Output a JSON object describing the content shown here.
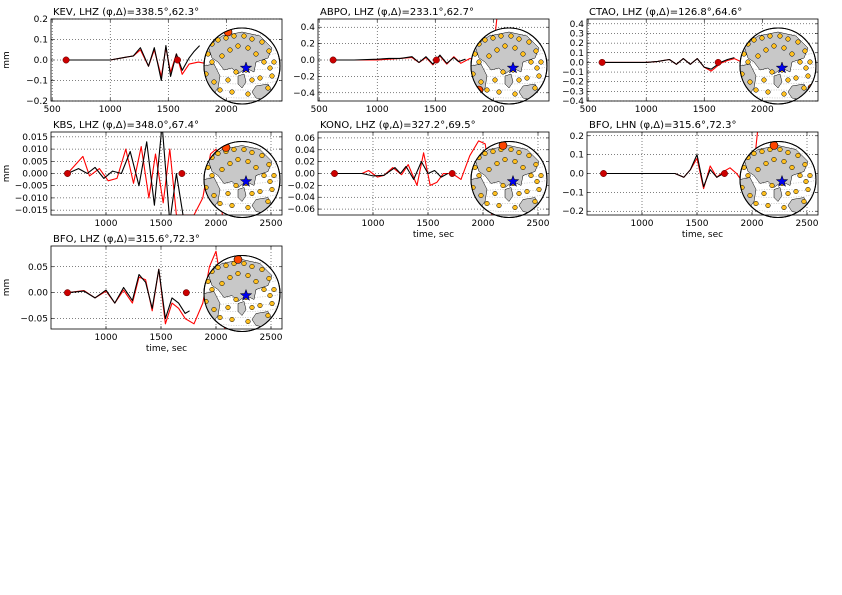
{
  "chart_data": [
    {
      "type": "line",
      "title": "KEV, LHZ (φ,Δ)=338.5°,62.3°",
      "ylabel": "mm",
      "xlabel": "",
      "xlim": [
        490,
        2480
      ],
      "ylim": [
        -0.2,
        0.2
      ],
      "xticks": [
        500,
        1000,
        1500,
        2000
      ],
      "yticks": [
        -0.2,
        -0.1,
        0.0,
        0.1,
        0.2
      ],
      "ytick_labels": [
        "−0.2",
        "−0.1",
        "0.0",
        "0.1",
        "0.2"
      ],
      "grid": true,
      "series": [
        {
          "color": "#000000",
          "x": [
            620,
            800,
            1000,
            1100,
            1200,
            1260,
            1330,
            1380,
            1440,
            1480,
            1520,
            1570,
            1620,
            1680,
            1720,
            1770
          ],
          "y": [
            0.0,
            0.0,
            0.0,
            0.01,
            0.02,
            0.06,
            -0.03,
            0.06,
            -0.1,
            0.07,
            -0.08,
            0.03,
            -0.05,
            0.01,
            0.04,
            0.07
          ]
        },
        {
          "color": "#ff0000",
          "x": [
            620,
            800,
            1000,
            1100,
            1200,
            1260,
            1330,
            1380,
            1440,
            1480,
            1520,
            1570,
            1620,
            1680,
            1760,
            1850,
            1920,
            1970,
            2010,
            2030
          ],
          "y": [
            0.0,
            0.0,
            0.0,
            0.01,
            0.02,
            0.05,
            -0.03,
            0.05,
            -0.08,
            0.06,
            -0.06,
            0.03,
            -0.07,
            -0.02,
            -0.01,
            -0.02,
            -0.05,
            -0.03,
            0.06,
            -0.2
          ]
        }
      ],
      "markers": [
        {
          "x": 620,
          "y": 0.0
        },
        {
          "x": 1580,
          "y": 0.0
        }
      ]
    },
    {
      "type": "line",
      "title": "ABPO, LHZ (φ,Δ)=233.1°,62.7°",
      "ylabel": "",
      "xlabel": "",
      "xlim": [
        490,
        2480
      ],
      "ylim": [
        -0.5,
        0.5
      ],
      "xticks": [
        500,
        1000,
        1500,
        2000
      ],
      "yticks": [
        -0.4,
        -0.2,
        0.0,
        0.2,
        0.4
      ],
      "ytick_labels": [
        "−0.4",
        "−0.2",
        "0.0",
        "0.2",
        "0.4"
      ],
      "grid": true,
      "series": [
        {
          "color": "#000000",
          "x": [
            620,
            800,
            1000,
            1100,
            1200,
            1300,
            1360,
            1420,
            1480,
            1540,
            1600,
            1660,
            1700,
            1760
          ],
          "y": [
            0.0,
            0.0,
            0.01,
            0.02,
            0.02,
            0.04,
            -0.03,
            0.04,
            -0.05,
            0.06,
            -0.04,
            0.03,
            -0.02,
            0.01
          ]
        },
        {
          "color": "#ff0000",
          "x": [
            620,
            800,
            1000,
            1100,
            1200,
            1300,
            1360,
            1420,
            1480,
            1540,
            1600,
            1660,
            1720,
            1800,
            1900,
            1960,
            2000,
            2030
          ],
          "y": [
            0.0,
            0.0,
            0.0,
            0.01,
            0.02,
            0.03,
            -0.03,
            0.03,
            -0.06,
            0.05,
            -0.05,
            0.04,
            -0.04,
            0.02,
            -0.05,
            -0.09,
            0.1,
            0.5
          ]
        }
      ],
      "markers": [
        {
          "x": 620,
          "y": 0.0
        },
        {
          "x": 1510,
          "y": 0.0
        }
      ]
    },
    {
      "type": "line",
      "title": "CTAO, LHZ (φ,Δ)=126.8°,64.6°",
      "ylabel": "",
      "xlabel": "",
      "xlim": [
        490,
        2480
      ],
      "ylim": [
        -0.4,
        0.45
      ],
      "xticks": [
        500,
        1000,
        1500,
        2000
      ],
      "yticks": [
        -0.4,
        -0.3,
        -0.2,
        -0.1,
        0.0,
        0.1,
        0.2,
        0.3,
        0.4
      ],
      "ytick_labels": [
        "−0.4",
        "−0.3",
        "−0.2",
        "−0.1",
        "0.0",
        "0.1",
        "0.2",
        "0.3",
        "0.4"
      ],
      "grid": true,
      "series": [
        {
          "color": "#000000",
          "x": [
            620,
            800,
            1000,
            1100,
            1200,
            1260,
            1320,
            1380,
            1440,
            1500,
            1560,
            1640,
            1700,
            1760
          ],
          "y": [
            0.0,
            0.0,
            0.0,
            0.01,
            0.03,
            -0.02,
            0.04,
            -0.02,
            0.04,
            -0.05,
            -0.07,
            0.0,
            0.03,
            0.05
          ]
        },
        {
          "color": "#ff0000",
          "x": [
            620,
            800,
            1000,
            1100,
            1200,
            1260,
            1320,
            1380,
            1440,
            1500,
            1560,
            1640,
            1700,
            1760,
            1830,
            1880,
            1920,
            1960,
            2000,
            2030
          ],
          "y": [
            0.0,
            0.0,
            0.0,
            0.01,
            0.03,
            -0.02,
            0.04,
            -0.02,
            0.04,
            -0.05,
            -0.09,
            -0.01,
            0.02,
            0.04,
            0.0,
            -0.02,
            0.08,
            0.15,
            -0.05,
            -0.45
          ]
        }
      ],
      "markers": [
        {
          "x": 620,
          "y": 0.0
        },
        {
          "x": 1620,
          "y": 0.0
        }
      ]
    },
    {
      "type": "line",
      "title": "KBS, LHZ (φ,Δ)=348.0°,67.4°",
      "ylabel": "mm",
      "xlabel": "",
      "xlim": [
        500,
        2600
      ],
      "ylim": [
        -0.017,
        0.017
      ],
      "xticks": [
        1000,
        1500,
        2000,
        2500
      ],
      "yticks": [
        -0.015,
        -0.01,
        -0.005,
        0.0,
        0.005,
        0.01,
        0.015
      ],
      "ytick_labels": [
        "−0.015",
        "−0.010",
        "−0.005",
        "0.000",
        "0.005",
        "0.010",
        "0.015"
      ],
      "grid": true,
      "series": [
        {
          "color": "#000000",
          "x": [
            650,
            750,
            830,
            900,
            980,
            1060,
            1140,
            1220,
            1300,
            1370,
            1440,
            1510,
            1580,
            1640,
            1700
          ],
          "y": [
            0.0,
            0.002,
            0.0,
            0.0025,
            -0.002,
            0.001,
            0.0,
            0.009,
            -0.005,
            0.013,
            -0.013,
            0.02,
            -0.02,
            0.0,
            -0.017
          ]
        },
        {
          "color": "#ff0000",
          "x": [
            650,
            730,
            790,
            850,
            940,
            1020,
            1100,
            1180,
            1250,
            1320,
            1390,
            1450,
            1520,
            1580,
            1640,
            1720,
            1800,
            1880,
            1950,
            2000,
            2040,
            2060
          ],
          "y": [
            0.0,
            0.004,
            0.007,
            -0.001,
            0.002,
            -0.003,
            -0.002,
            0.01,
            -0.004,
            0.011,
            -0.01,
            0.008,
            -0.012,
            0.01,
            -0.017,
            -0.017,
            -0.017,
            -0.01,
            0.008,
            0.01,
            0.0,
            -0.02
          ]
        }
      ],
      "markers": [
        {
          "x": 650,
          "y": 0.0
        },
        {
          "x": 1690,
          "y": 0.0
        }
      ]
    },
    {
      "type": "line",
      "title": "KONO, LHZ (φ,Δ)=327.2°,69.5°",
      "ylabel": "",
      "xlabel": "time, sec",
      "xlim": [
        500,
        2600
      ],
      "ylim": [
        -0.07,
        0.07
      ],
      "xticks": [
        1000,
        1500,
        2000,
        2500
      ],
      "yticks": [
        -0.06,
        -0.04,
        -0.02,
        0.0,
        0.02,
        0.04,
        0.06
      ],
      "ytick_labels": [
        "−0.06",
        "−0.04",
        "−0.02",
        "0.00",
        "0.02",
        "0.04",
        "0.06"
      ],
      "grid": true,
      "series": [
        {
          "color": "#000000",
          "x": [
            650,
            800,
            900,
            1000,
            1100,
            1200,
            1250,
            1300,
            1370,
            1440,
            1500,
            1560,
            1620,
            1680
          ],
          "y": [
            0.0,
            0.0,
            0.0,
            -0.004,
            -0.003,
            0.01,
            0.0,
            0.012,
            -0.01,
            0.02,
            0.0,
            0.005,
            -0.006,
            0.0
          ]
        },
        {
          "color": "#ff0000",
          "x": [
            650,
            800,
            900,
            960,
            1040,
            1100,
            1180,
            1260,
            1320,
            1400,
            1460,
            1520,
            1580,
            1640,
            1720,
            1800,
            1880,
            1960,
            2020,
            2060,
            2080
          ],
          "y": [
            0.0,
            0.0,
            0.0,
            0.005,
            -0.006,
            -0.003,
            0.01,
            -0.002,
            0.015,
            -0.02,
            0.035,
            -0.02,
            -0.015,
            0.0,
            0.0,
            -0.01,
            0.03,
            0.055,
            0.05,
            0.0,
            -0.07
          ]
        }
      ],
      "markers": [
        {
          "x": 650,
          "y": 0.0
        },
        {
          "x": 1720,
          "y": 0.0
        }
      ]
    },
    {
      "type": "line",
      "title": "BFO, LHN (φ,Δ)=315.6°,72.3°",
      "ylabel": "",
      "xlabel": "time, sec",
      "xlim": [
        500,
        2600
      ],
      "ylim": [
        -0.22,
        0.22
      ],
      "xticks": [
        1000,
        1500,
        2000,
        2500
      ],
      "yticks": [
        -0.2,
        -0.1,
        0.0,
        0.1,
        0.2
      ],
      "ytick_labels": [
        "−0.2",
        "−0.1",
        "0.0",
        "0.1",
        "0.2"
      ],
      "grid": true,
      "series": [
        {
          "color": "#000000",
          "x": [
            650,
            800,
            1000,
            1200,
            1300,
            1380,
            1440,
            1500,
            1560,
            1620,
            1680,
            1740
          ],
          "y": [
            0.0,
            0.0,
            0.0,
            0.0,
            0.0,
            -0.02,
            0.02,
            0.1,
            -0.07,
            0.02,
            -0.02,
            0.0
          ]
        },
        {
          "color": "#ff0000",
          "x": [
            650,
            800,
            1000,
            1200,
            1300,
            1380,
            1440,
            1500,
            1560,
            1620,
            1680,
            1740,
            1800,
            1860,
            1920,
            1980,
            2020,
            2050
          ],
          "y": [
            0.0,
            0.0,
            0.0,
            0.0,
            0.0,
            -0.02,
            0.02,
            0.08,
            -0.08,
            0.04,
            -0.02,
            0.01,
            0.03,
            0.0,
            -0.05,
            -0.15,
            0.05,
            0.22
          ]
        }
      ],
      "markers": [
        {
          "x": 650,
          "y": 0.0
        },
        {
          "x": 1750,
          "y": 0.0
        }
      ]
    },
    {
      "type": "line",
      "title": "BFO, LHZ (φ,Δ)=315.6°,72.3°",
      "ylabel": "mm",
      "xlabel": "time, sec",
      "xlim": [
        500,
        2600
      ],
      "ylim": [
        -0.07,
        0.09
      ],
      "xticks": [
        1000,
        1500,
        2000,
        2500
      ],
      "yticks": [
        -0.05,
        0.0,
        0.05
      ],
      "ytick_labels": [
        "−0.05",
        "0.00",
        "0.05"
      ],
      "grid": true,
      "series": [
        {
          "color": "#000000",
          "x": [
            650,
            800,
            900,
            1000,
            1080,
            1160,
            1240,
            1300,
            1360,
            1420,
            1480,
            1540,
            1600,
            1660,
            1720,
            1760
          ],
          "y": [
            0.0,
            0.003,
            -0.01,
            0.005,
            -0.02,
            0.01,
            -0.015,
            0.035,
            0.02,
            -0.03,
            0.045,
            -0.05,
            -0.01,
            -0.02,
            -0.04,
            -0.035
          ]
        },
        {
          "color": "#ff0000",
          "x": [
            650,
            800,
            900,
            1000,
            1080,
            1160,
            1240,
            1300,
            1360,
            1420,
            1480,
            1540,
            1600,
            1660,
            1720,
            1800,
            1880,
            1940,
            2000,
            2060,
            2080
          ],
          "y": [
            0.0,
            0.004,
            -0.01,
            0.003,
            -0.02,
            0.005,
            -0.02,
            0.03,
            0.025,
            -0.035,
            0.045,
            -0.06,
            -0.02,
            -0.03,
            -0.05,
            -0.06,
            -0.02,
            0.05,
            0.08,
            0.0,
            -0.07
          ]
        }
      ],
      "markers": [
        {
          "x": 650,
          "y": 0.0
        },
        {
          "x": 1730,
          "y": 0.0
        }
      ]
    }
  ]
}
